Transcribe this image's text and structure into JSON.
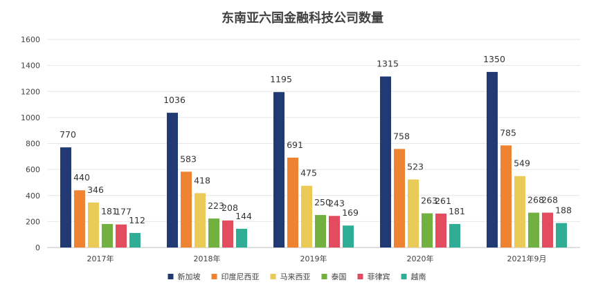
{
  "chart_data": {
    "type": "bar",
    "title": "东南亚六国金融科技公司数量",
    "categories": [
      "2017年",
      "2018年",
      "2019年",
      "2020年",
      "2021年9月"
    ],
    "series": [
      {
        "name": "新加坡",
        "color": "#213a73",
        "values": [
          770,
          1036,
          1195,
          1315,
          1350
        ]
      },
      {
        "name": "印度尼西亚",
        "color": "#ee8433",
        "values": [
          440,
          583,
          691,
          758,
          785
        ]
      },
      {
        "name": "马来西亚",
        "color": "#ebcb57",
        "values": [
          346,
          418,
          475,
          523,
          549
        ]
      },
      {
        "name": "泰国",
        "color": "#72b13f",
        "values": [
          181,
          223,
          250,
          263,
          268
        ]
      },
      {
        "name": "菲律宾",
        "color": "#e34b5f",
        "values": [
          177,
          208,
          243,
          261,
          268
        ]
      },
      {
        "name": "越南",
        "color": "#2fae95",
        "values": [
          112,
          144,
          169,
          181,
          188
        ]
      }
    ],
    "ylim": [
      0,
      1600
    ],
    "yticks": [
      "0",
      "200",
      "400",
      "600",
      "800",
      "1000",
      "1200",
      "1400",
      "1600"
    ],
    "grid": true,
    "legend_position": "bottom"
  }
}
